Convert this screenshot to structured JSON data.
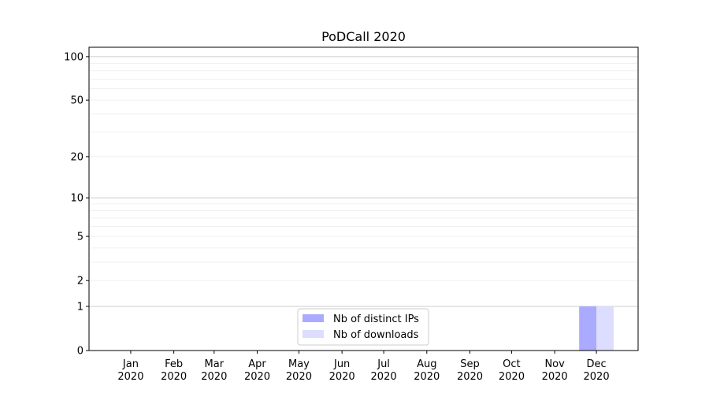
{
  "chart_data": {
    "type": "bar",
    "title": "PoDCall 2020",
    "xlabel": "",
    "ylabel": "",
    "yscale": "log(1+y)",
    "ylim": [
      0,
      116
    ],
    "yticks": [
      0,
      1,
      2,
      5,
      10,
      20,
      50,
      100
    ],
    "xlim": [
      "2019-12-02",
      "2020-12-31"
    ],
    "xticks": [
      {
        "date": "2020-01-01",
        "label": [
          "Jan",
          "2020"
        ]
      },
      {
        "date": "2020-02-01",
        "label": [
          "Feb",
          "2020"
        ]
      },
      {
        "date": "2020-03-01",
        "label": [
          "Mar",
          "2020"
        ]
      },
      {
        "date": "2020-04-01",
        "label": [
          "Apr",
          "2020"
        ]
      },
      {
        "date": "2020-05-01",
        "label": [
          "May",
          "2020"
        ]
      },
      {
        "date": "2020-06-01",
        "label": [
          "Jun",
          "2020"
        ]
      },
      {
        "date": "2020-07-01",
        "label": [
          "Jul",
          "2020"
        ]
      },
      {
        "date": "2020-08-01",
        "label": [
          "Aug",
          "2020"
        ]
      },
      {
        "date": "2020-09-01",
        "label": [
          "Sep",
          "2020"
        ]
      },
      {
        "date": "2020-10-01",
        "label": [
          "Oct",
          "2020"
        ]
      },
      {
        "date": "2020-11-01",
        "label": [
          "Nov",
          "2020"
        ]
      },
      {
        "date": "2020-12-01",
        "label": [
          "Dec",
          "2020"
        ]
      }
    ],
    "grid": true,
    "legend": "lower-center",
    "series": [
      {
        "name": "Nb of distinct IPs",
        "color": "#aaaaff",
        "align": "left",
        "points": [
          {
            "date": "2020-12-01",
            "value": 1
          }
        ]
      },
      {
        "name": "Nb of downloads",
        "color": "#ddddff",
        "align": "right",
        "points": [
          {
            "date": "2020-12-01",
            "value": 1
          }
        ]
      }
    ]
  }
}
